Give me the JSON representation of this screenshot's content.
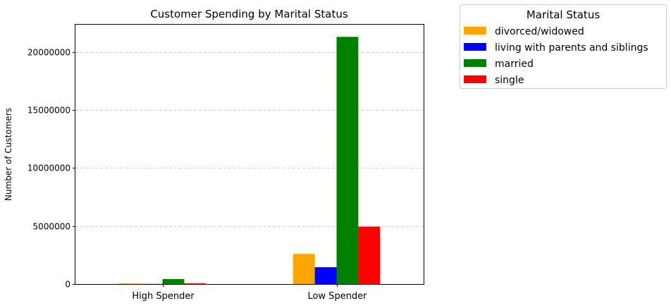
{
  "chart_data": {
    "type": "bar",
    "title": "Customer Spending by Marital Status",
    "xlabel": "",
    "ylabel": "Number of Customers",
    "categories": [
      "High Spender",
      "Low Spender"
    ],
    "series": [
      {
        "name": "divorced/widowed",
        "color": "#ffa500",
        "values": [
          50000,
          2600000
        ]
      },
      {
        "name": "living with parents and siblings",
        "color": "#0000ff",
        "values": [
          10000,
          1450000
        ]
      },
      {
        "name": "married",
        "color": "#008000",
        "values": [
          430000,
          21300000
        ]
      },
      {
        "name": "single",
        "color": "#ff0000",
        "values": [
          60000,
          4950000
        ]
      }
    ],
    "ylim": [
      0,
      22350000
    ],
    "yticks": [
      0,
      5000000,
      10000000,
      15000000,
      20000000
    ],
    "ytick_labels": [
      "0",
      "5000000",
      "10000000",
      "15000000",
      "20000000"
    ],
    "grid": {
      "y": true,
      "x": false,
      "style": "dashed"
    },
    "legend": {
      "title": "Marital Status",
      "placement": "outside-top-right"
    }
  }
}
